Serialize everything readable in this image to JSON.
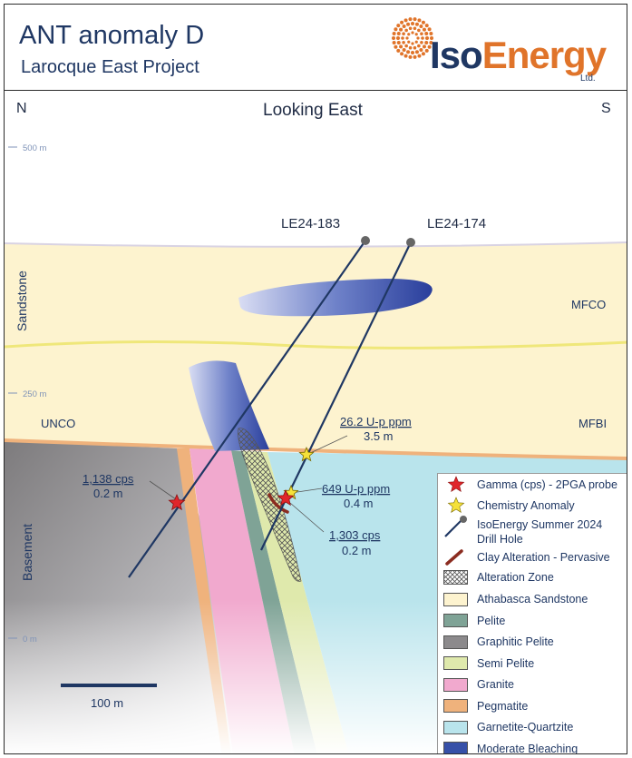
{
  "header": {
    "title": "ANT anomaly D",
    "subtitle": "Larocque East Project",
    "logo": {
      "name": "IsoEnergy",
      "iso": "Iso",
      "energy": "Energy",
      "ltd": "Ltd.",
      "colors": {
        "navy": "#1f3763",
        "orange": "#e0742a"
      }
    }
  },
  "section": {
    "view": "Looking East",
    "north": "N",
    "south": "S",
    "elevations": [
      "500 m",
      "250 m",
      "0 m"
    ],
    "zones": {
      "upper": "Sandstone",
      "lower": "Basement"
    },
    "unit_labels": {
      "mfco": "MFCO",
      "mfbi": "MFBI",
      "unco": "UNCO"
    },
    "holes": [
      {
        "id": "LE24-183"
      },
      {
        "id": "LE24-174"
      }
    ],
    "annotations": {
      "a1_value": "26.2 U-p ppm",
      "a1_width": "3.5 m",
      "a2_value": "649 U-p ppm",
      "a2_width": "0.4 m",
      "a3_value": "1,303 cps",
      "a3_width": "0.2 m",
      "a4_value": "1,138 cps",
      "a4_width": "0.2 m"
    },
    "scale": "100 m"
  },
  "legend": {
    "items": [
      {
        "label": "Gamma (cps) - 2PGA probe",
        "icon": "red-star-icon"
      },
      {
        "label": "Chemistry Anomaly",
        "icon": "yellow-star-icon"
      },
      {
        "label": "IsoEnergy Summer 2024",
        "label2": "Drill Hole",
        "icon": "drill-hole-icon"
      },
      {
        "label": "Clay Alteration - Pervasive",
        "icon": "clay-alteration-icon"
      },
      {
        "label": "Alteration Zone",
        "icon": "crosshatch-icon"
      },
      {
        "label": "Athabasca Sandstone",
        "color": "#fdf3cf"
      },
      {
        "label": "Pelite",
        "color": "#7fa396"
      },
      {
        "label": "Graphitic Pelite",
        "color": "#8c8a8c"
      },
      {
        "label": "Semi Pelite",
        "color": "#dfe9ac"
      },
      {
        "label": "Granite",
        "color": "#f1a9ce"
      },
      {
        "label": "Pegmatite",
        "color": "#efb27c"
      },
      {
        "label": "Garnetite-Quartzite",
        "color": "#b9e4ec"
      },
      {
        "label": "Moderate Bleaching",
        "color": "#3650a8"
      }
    ]
  }
}
